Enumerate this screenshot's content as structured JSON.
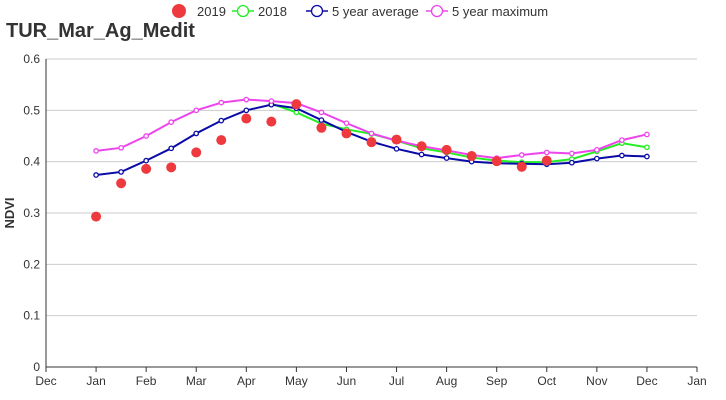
{
  "chart_data": {
    "type": "line",
    "title": "TUR_Mar_Ag_Medit",
    "xlabel": "",
    "ylabel": "NDVI",
    "ylim": [
      0,
      0.6
    ],
    "yticks": [
      "0",
      "0.1",
      "0.2",
      "0.3",
      "0.4",
      "0.5",
      "0.6"
    ],
    "xticks": [
      "Dec",
      "Jan",
      "Feb",
      "Mar",
      "Apr",
      "May",
      "Jun",
      "Jul",
      "Aug",
      "Sep",
      "Oct",
      "Nov",
      "Dec",
      "Jan"
    ],
    "grid": true,
    "legend": "top-center",
    "dekads": [
      1,
      1.5,
      2,
      2.5,
      3,
      3.5,
      4,
      4.5,
      5,
      5.5,
      6,
      6.5,
      7,
      7.5,
      8,
      8.5,
      9,
      9.5,
      10,
      10.5,
      11,
      11.5,
      12
    ],
    "series": [
      {
        "name": "2019",
        "style": "dots",
        "color": "#ee3a3f",
        "values": [
          0.293,
          0.358,
          0.386,
          0.389,
          0.418,
          0.442,
          0.484,
          0.478,
          0.512,
          0.466,
          0.455,
          0.438,
          0.443,
          0.43,
          0.423,
          0.411,
          0.401,
          0.39,
          0.402,
          null,
          null,
          null,
          null
        ]
      },
      {
        "name": "2018",
        "style": "line",
        "color": "#22ee22",
        "values": [
          null,
          null,
          null,
          null,
          null,
          null,
          null,
          0.513,
          0.496,
          0.474,
          0.463,
          0.454,
          0.441,
          0.426,
          0.418,
          0.408,
          0.402,
          0.399,
          0.399,
          0.405,
          0.42,
          0.436,
          0.428
        ]
      },
      {
        "name": "5 year average",
        "style": "line",
        "color": "#0a0aa8",
        "values": [
          0.374,
          0.38,
          0.402,
          0.426,
          0.455,
          0.48,
          0.5,
          0.511,
          0.504,
          0.481,
          0.458,
          0.439,
          0.425,
          0.414,
          0.407,
          0.4,
          0.397,
          0.396,
          0.395,
          0.398,
          0.406,
          0.412,
          0.41
        ]
      },
      {
        "name": "5 year maximum",
        "style": "line",
        "color": "#ee44ee",
        "values": [
          0.421,
          0.427,
          0.45,
          0.477,
          0.5,
          0.515,
          0.521,
          0.518,
          0.514,
          0.496,
          0.475,
          0.455,
          0.441,
          0.43,
          0.422,
          0.413,
          0.407,
          0.413,
          0.418,
          0.416,
          0.423,
          0.442,
          0.453
        ]
      }
    ]
  }
}
